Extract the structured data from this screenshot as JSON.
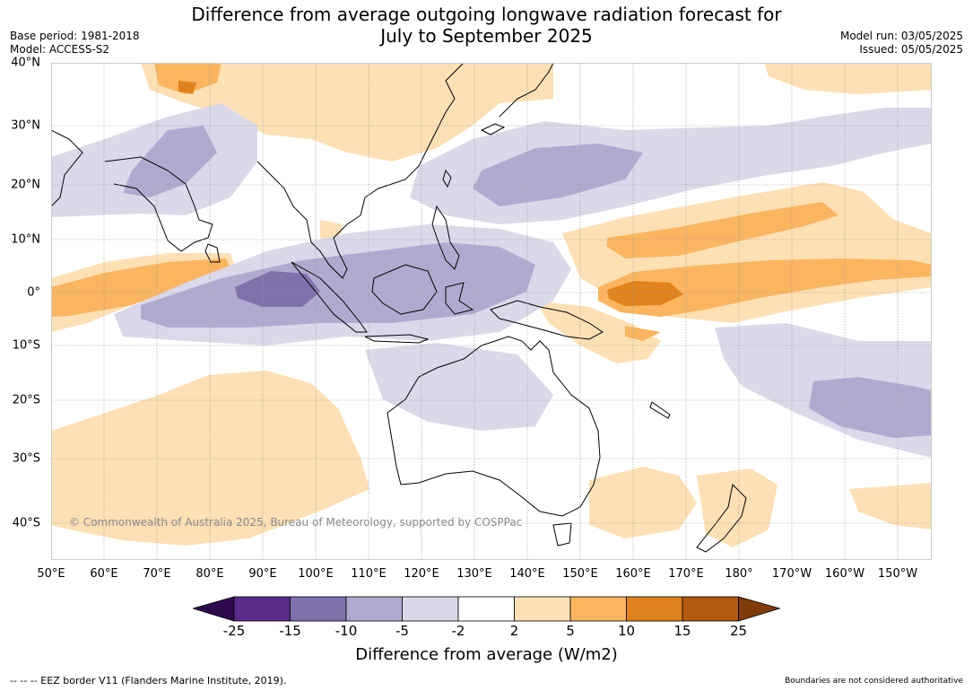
{
  "title": {
    "line1": "Difference from average outgoing longwave radiation forecast for",
    "line2": "July to September 2025"
  },
  "meta": {
    "base_period": "Base period: 1981-2018",
    "model": "Model: ACCESS-S2",
    "model_run": "Model run: 03/05/2025",
    "issued": "Issued: 05/05/2025"
  },
  "map": {
    "lat_labels": [
      "40°N",
      "30°N",
      "20°N",
      "10°N",
      "0°",
      "10°S",
      "20°S",
      "30°S",
      "40°S"
    ],
    "lon_labels": [
      "50°E",
      "60°E",
      "70°E",
      "80°E",
      "90°E",
      "100°E",
      "110°E",
      "120°E",
      "130°E",
      "140°E",
      "150°E",
      "160°E",
      "170°E",
      "180°",
      "170°W",
      "160°W",
      "150°W"
    ],
    "copyright": "© Commonwealth of Australia 2025, Bureau of Meteorology, supported by COSPPac"
  },
  "colorbar": {
    "ticks": [
      "-25",
      "-15",
      "-10",
      "-5",
      "-2",
      "2",
      "5",
      "10",
      "15",
      "25"
    ],
    "colors": [
      "#2d0a4e",
      "#5a2a8a",
      "#8071ad",
      "#b1aad0",
      "#d9d9ea",
      "#ffffff",
      "#fde0b4",
      "#fbb560",
      "#e0821d",
      "#b3590f",
      "#7f3b08"
    ],
    "title": "Difference from average (W/m2)"
  },
  "footer": {
    "eez": "--  --  -- EEZ border V11 (Flanders Marine Institute, 2019).",
    "boundaries": "Boundaries are not considered authoritative"
  }
}
